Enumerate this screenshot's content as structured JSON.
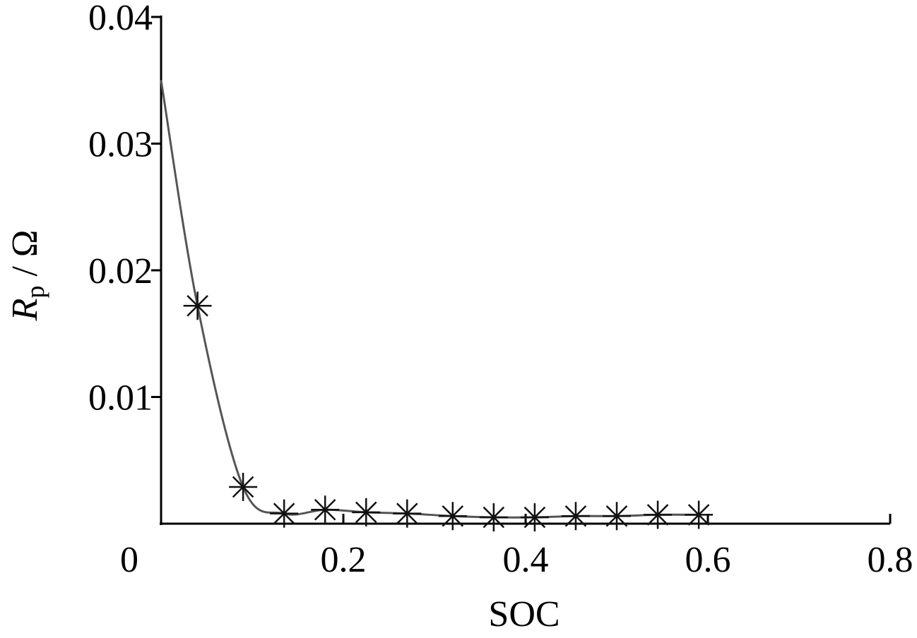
{
  "chart_data": {
    "type": "line",
    "xlabel": "SOC",
    "ylabel": {
      "symbol": "R",
      "subscript": "p",
      "unit": " / Ω"
    },
    "xlim": [
      0,
      0.8
    ],
    "ylim": [
      0,
      0.04
    ],
    "xticks": [
      0,
      0.2,
      0.4,
      0.6,
      0.8
    ],
    "xtick_labels": [
      "0",
      "0.2",
      "0.4",
      "0.6",
      "0.8"
    ],
    "yticks": [
      0.01,
      0.02,
      0.03,
      0.04
    ],
    "ytick_labels": [
      "0.01",
      "0.02",
      "0.03",
      "0.04"
    ],
    "grid": false,
    "marker": "asterisk",
    "line_start": {
      "x": 0.0,
      "y": 0.035
    },
    "series": [
      {
        "x": [
          0.04,
          0.09,
          0.135,
          0.18,
          0.225,
          0.27,
          0.32,
          0.365,
          0.41,
          0.455,
          0.5,
          0.545,
          0.59
        ],
        "y": [
          0.0172,
          0.0029,
          0.0008,
          0.0011,
          0.0009,
          0.0008,
          0.0006,
          0.0005,
          0.0005,
          0.0006,
          0.0006,
          0.0007,
          0.0007
        ]
      }
    ],
    "colors": {
      "line": "#555555",
      "marker": "#111111",
      "axis": "#000000"
    }
  }
}
